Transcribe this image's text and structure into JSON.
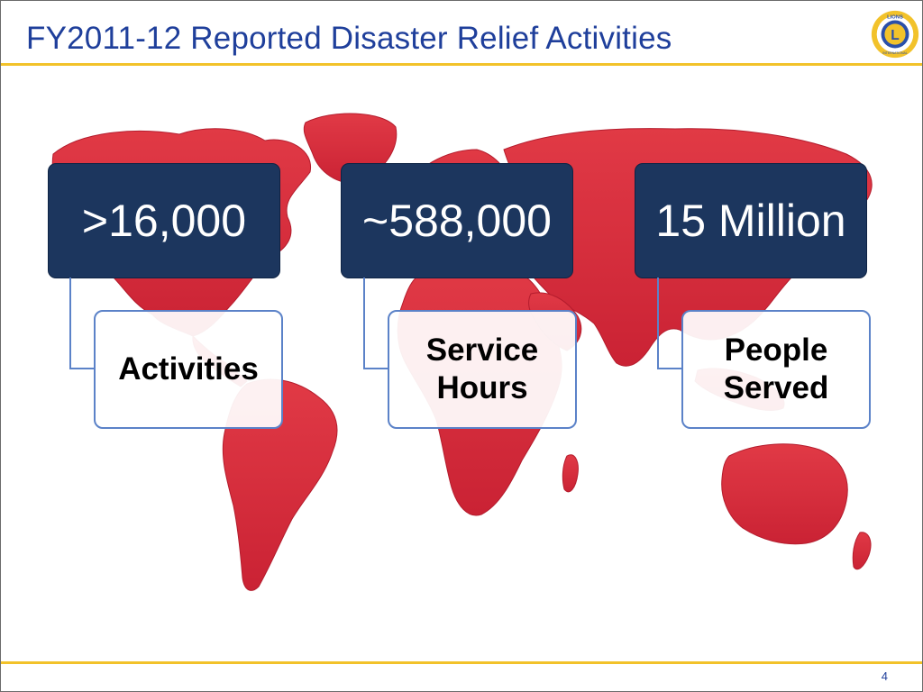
{
  "slide": {
    "title": "FY2011-12 Reported Disaster Relief Activities",
    "page_number": "4",
    "logo": {
      "text": "LIONS",
      "sub_text": "INTERNATIONAL",
      "letter": "L"
    }
  },
  "stats": [
    {
      "value": ">16,000",
      "label": "Activities"
    },
    {
      "value": "~588,000",
      "label": "Service\nHours"
    },
    {
      "value": "15 Million",
      "label": "People\nServed"
    }
  ],
  "colors": {
    "title": "#1f3f9b",
    "accent_rule": "#f2c22a",
    "stat_box": "#1c365e",
    "label_border": "#5b82c8",
    "map_red": "#d41f2e"
  }
}
